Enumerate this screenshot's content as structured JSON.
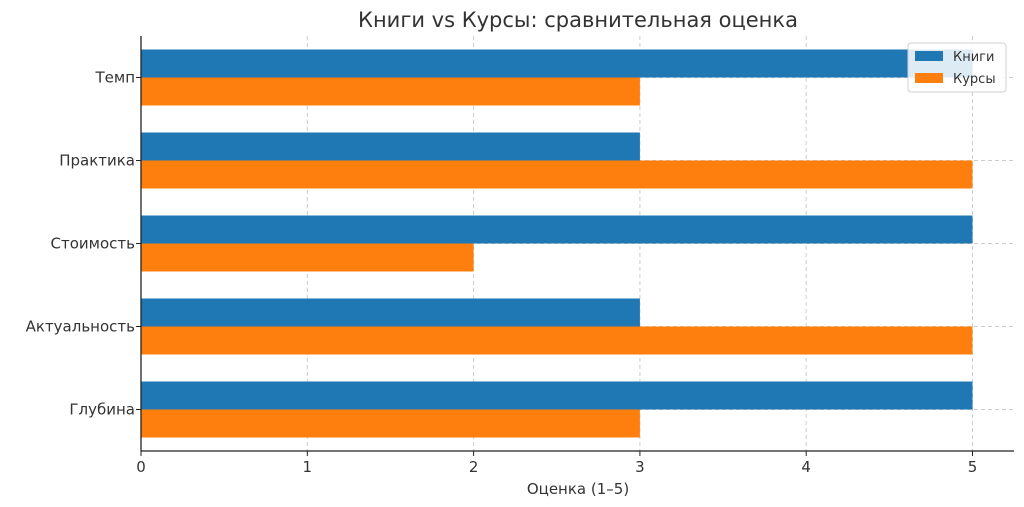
{
  "chart_data": {
    "type": "bar",
    "orientation": "horizontal",
    "title": "Книги vs Курсы: сравнительная оценка",
    "xlabel": "Оценка (1–5)",
    "ylabel": "",
    "categories": [
      "Глубина",
      "Актуальность",
      "Стоимость",
      "Практика",
      "Темп"
    ],
    "series": [
      {
        "name": "Книги",
        "color": "#1f77b4",
        "values": [
          5,
          3,
          5,
          3,
          5
        ]
      },
      {
        "name": "Курсы",
        "color": "#ff7f0e",
        "values": [
          3,
          5,
          2,
          5,
          3
        ]
      }
    ],
    "xlim": [
      0,
      5.25
    ],
    "xticks": [
      "0",
      "1",
      "2",
      "3",
      "4",
      "5"
    ],
    "grid": true,
    "legend_position": "top-right"
  }
}
